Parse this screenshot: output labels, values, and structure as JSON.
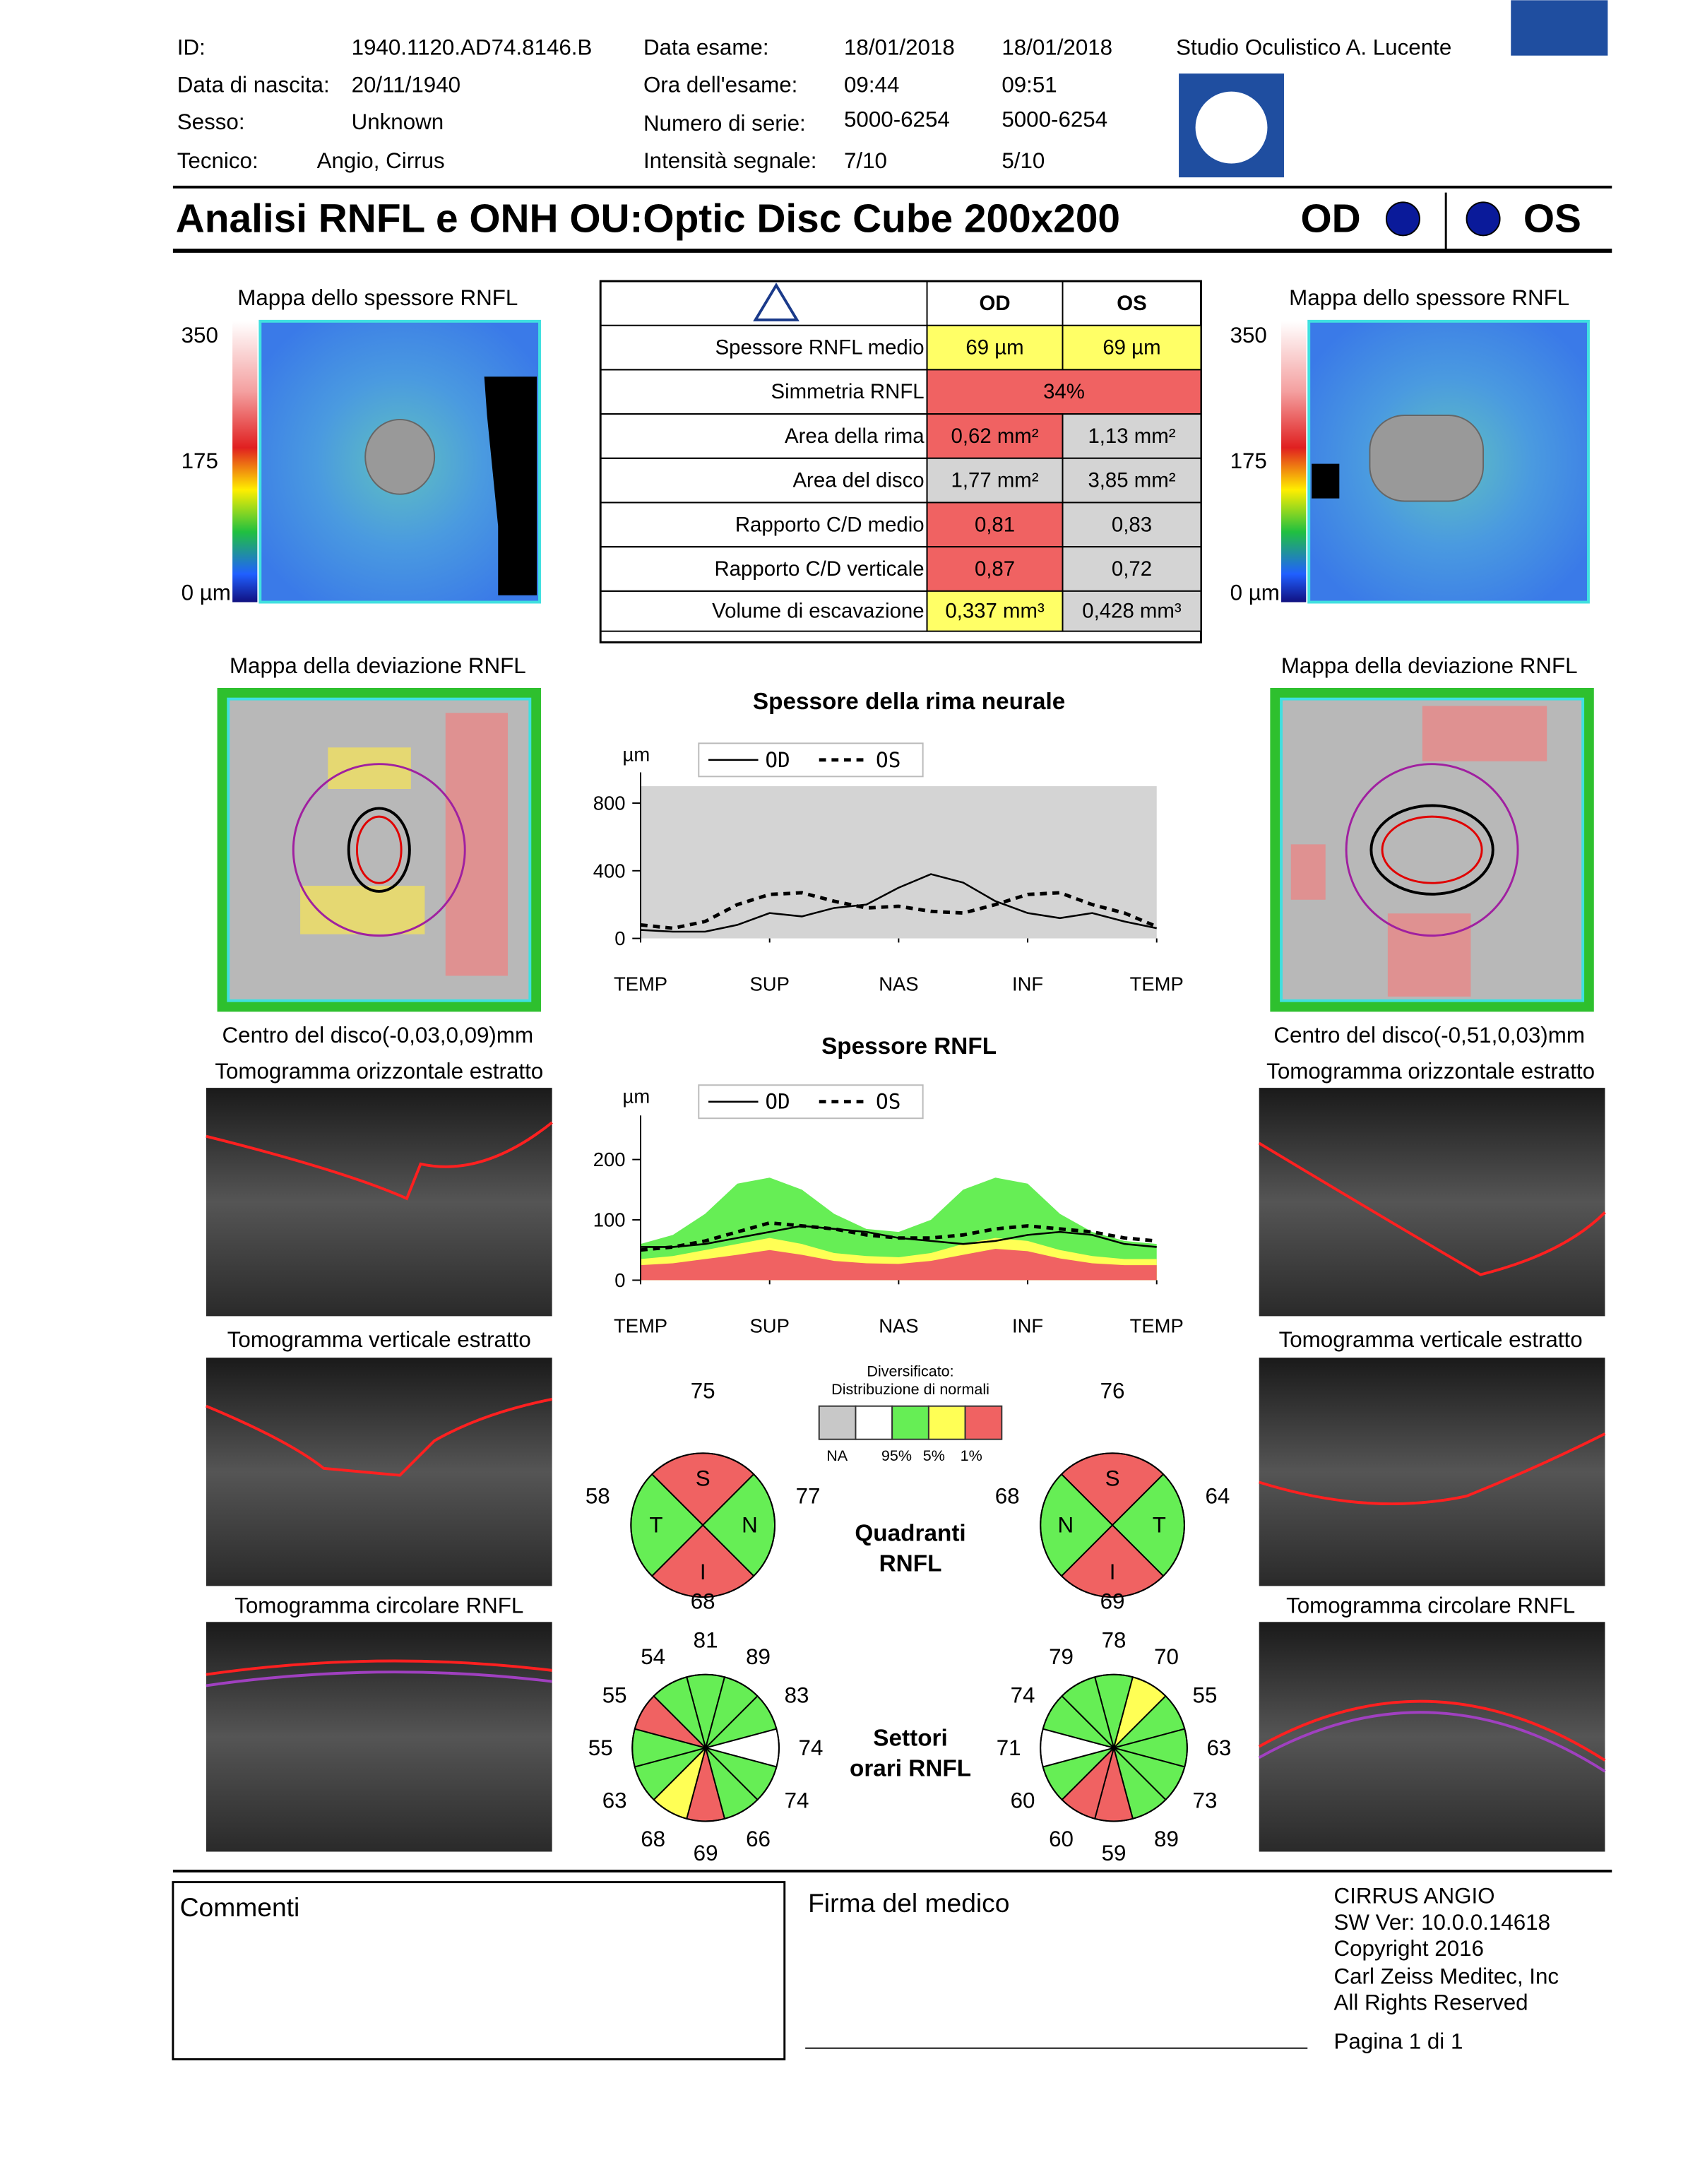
{
  "header": {
    "id_label": "ID:",
    "id": "1940.1120.AD74.8146.B",
    "birth_label": "Data di nascita:",
    "birth": "20/11/1940",
    "sex_label": "Sesso:",
    "sex": "Unknown",
    "tech_label": "Tecnico:",
    "tech": "Angio, Cirrus",
    "exam_date_label": "Data esame:",
    "exam_date_od": "18/01/2018",
    "exam_date_os": "18/01/2018",
    "exam_time_label": "Ora dell'esame:",
    "exam_time_od": "09:44",
    "exam_time_os": "09:51",
    "serial_label": "Numero di serie:",
    "serial_od": "5000-6254",
    "serial_os": "5000-6254",
    "signal_label": "Intensità segnale:",
    "signal_od": "7/10",
    "signal_os": "5/10",
    "clinic": "Studio Oculistico A. Lucente",
    "title": "Analisi RNFL e ONH OU:Optic Disc Cube 200x200",
    "od": "OD",
    "os": "OS"
  },
  "thickness_maps": {
    "title": "Mappa dello spessore RNFL",
    "scale_top": "350",
    "scale_mid": "175",
    "scale_bottom": "0 µm"
  },
  "table": {
    "head_od": "OD",
    "head_os": "OS",
    "rows": [
      {
        "label": "Spessore RNFL medio",
        "od": "69 µm",
        "os": "69 µm",
        "od_color": "#ffff66",
        "os_color": "#ffff66"
      },
      {
        "label": "Simmetria RNFL",
        "both": "34%",
        "color": "#f06262"
      },
      {
        "label": "Area della rima",
        "od": "0,62 mm²",
        "os": "1,13 mm²",
        "od_color": "#f06262",
        "os_color": "#d4d4d4"
      },
      {
        "label": "Area del disco",
        "od": "1,77 mm²",
        "os": "3,85 mm²",
        "od_color": "#d4d4d4",
        "os_color": "#d4d4d4"
      },
      {
        "label": "Rapporto C/D medio",
        "od": "0,81",
        "os": "0,83",
        "od_color": "#f06262",
        "os_color": "#d4d4d4"
      },
      {
        "label": "Rapporto C/D verticale",
        "od": "0,87",
        "os": "0,72",
        "od_color": "#f06262",
        "os_color": "#d4d4d4"
      },
      {
        "label": "Volume di escavazione",
        "od": "0,337 mm³",
        "os": "0,428 mm³",
        "od_color": "#ffff66",
        "os_color": "#d4d4d4"
      }
    ]
  },
  "deviation_maps": {
    "title": "Mappa della deviazione RNFL",
    "center_od": "Centro del disco(-0,03,0,09)mm",
    "center_os": "Centro del disco(-0,51,0,03)mm"
  },
  "rim_chart": {
    "type": "line",
    "title": "Spessore della rima neurale",
    "y_unit": "µm",
    "background": "#d4d4d4",
    "ylim": [
      0,
      900
    ],
    "yticks": [
      0,
      400,
      800
    ],
    "xlim": [
      0,
      16
    ],
    "xticks": [
      {
        "value": 0,
        "label": "TEMP"
      },
      {
        "value": 4,
        "label": "SUP"
      },
      {
        "value": 8,
        "label": "NAS"
      },
      {
        "value": 12,
        "label": "INF"
      },
      {
        "value": 16,
        "label": "TEMP"
      }
    ],
    "x": [
      0,
      1,
      2,
      3,
      4,
      5,
      6,
      7,
      8,
      9,
      10,
      11,
      12,
      13,
      14,
      15,
      16
    ],
    "series": [
      {
        "name": "OD",
        "color": "#000000",
        "dashed": false,
        "values": [
          50,
          40,
          40,
          80,
          150,
          130,
          180,
          200,
          300,
          380,
          330,
          220,
          150,
          120,
          150,
          100,
          60
        ]
      },
      {
        "name": "OS",
        "color": "#000000",
        "dashed": true,
        "values": [
          80,
          60,
          100,
          200,
          260,
          270,
          220,
          180,
          190,
          160,
          150,
          200,
          260,
          270,
          200,
          150,
          70
        ]
      }
    ]
  },
  "rnfl_chart": {
    "type": "line",
    "title": "Spessore RNFL",
    "y_unit": "µm",
    "ylim": [
      0,
      250
    ],
    "yticks": [
      0,
      100,
      200
    ],
    "xlim": [
      0,
      16
    ],
    "xticks": [
      {
        "value": 0,
        "label": "TEMP"
      },
      {
        "value": 4,
        "label": "SUP"
      },
      {
        "value": 8,
        "label": "NAS"
      },
      {
        "value": 12,
        "label": "INF"
      },
      {
        "value": 16,
        "label": "TEMP"
      }
    ],
    "x": [
      0,
      1,
      2,
      3,
      4,
      5,
      6,
      7,
      8,
      9,
      10,
      11,
      12,
      13,
      14,
      15,
      16
    ],
    "bands": [
      {
        "color": "#66ee55",
        "values": [
          60,
          75,
          110,
          160,
          170,
          150,
          110,
          85,
          80,
          100,
          150,
          170,
          160,
          110,
          80,
          65,
          60
        ]
      },
      {
        "color": "#ffff55",
        "values": [
          35,
          40,
          50,
          60,
          70,
          60,
          45,
          40,
          38,
          45,
          60,
          70,
          65,
          50,
          40,
          35,
          35
        ]
      },
      {
        "color": "#f06262",
        "values": [
          25,
          28,
          35,
          42,
          50,
          42,
          32,
          28,
          27,
          32,
          42,
          52,
          48,
          36,
          28,
          25,
          25
        ]
      }
    ],
    "series": [
      {
        "name": "OD",
        "color": "#000000",
        "dashed": false,
        "values": [
          55,
          55,
          60,
          70,
          80,
          90,
          85,
          80,
          70,
          65,
          60,
          65,
          75,
          80,
          75,
          60,
          55
        ]
      },
      {
        "name": "OS",
        "color": "#000000",
        "dashed": true,
        "values": [
          50,
          55,
          65,
          80,
          95,
          90,
          85,
          75,
          70,
          70,
          75,
          85,
          90,
          85,
          80,
          70,
          65
        ]
      }
    ]
  },
  "legend": {
    "title1": "Diversificato:",
    "title2": "Distribuzione di normali",
    "swatches": [
      "#c8c8c8",
      "#ffffff",
      "#66ee55",
      "#ffff55",
      "#f06262"
    ],
    "labels": [
      "NA",
      "95%",
      "5%",
      "1%"
    ]
  },
  "quadrants": {
    "title1": "Quadranti",
    "title2": "RNFL",
    "od": {
      "type": "pie",
      "labels": [
        "S",
        "N",
        "I",
        "T"
      ],
      "values": [
        75,
        77,
        68,
        58
      ],
      "colors": [
        "#f06262",
        "#66ee55",
        "#f06262",
        "#66ee55"
      ]
    },
    "os": {
      "type": "pie",
      "labels": [
        "S",
        "T",
        "I",
        "N"
      ],
      "values": [
        76,
        64,
        69,
        68
      ],
      "colors": [
        "#f06262",
        "#66ee55",
        "#f06262",
        "#66ee55"
      ]
    }
  },
  "clock_hours": {
    "title1": "Settori",
    "title2": "orari RNFL",
    "od": {
      "type": "pie",
      "values": [
        81,
        89,
        83,
        74,
        74,
        66,
        69,
        68,
        63,
        55,
        55,
        54
      ],
      "colors": [
        "#66ee55",
        "#66ee55",
        "#66ee55",
        "#ffffff",
        "#66ee55",
        "#66ee55",
        "#f06262",
        "#ffff55",
        "#66ee55",
        "#66ee55",
        "#f06262",
        "#66ee55"
      ]
    },
    "os": {
      "type": "pie",
      "values": [
        78,
        70,
        55,
        63,
        73,
        89,
        59,
        60,
        60,
        71,
        74,
        79
      ],
      "colors": [
        "#66ee55",
        "#ffff55",
        "#66ee55",
        "#66ee55",
        "#66ee55",
        "#66ee55",
        "#f06262",
        "#f06262",
        "#66ee55",
        "#ffffff",
        "#66ee55",
        "#66ee55"
      ]
    }
  },
  "tomograms": {
    "horizontal": "Tomogramma orizzontale estratto",
    "vertical": "Tomogramma verticale estratto",
    "circular": "Tomogramma circolare RNFL"
  },
  "footer": {
    "comments": "Commenti",
    "signature": "Firma del medico",
    "software": [
      "CIRRUS ANGIO",
      "SW Ver: 10.0.0.14618",
      "Copyright 2016",
      "Carl Zeiss Meditec, Inc",
      "All Rights Reserved"
    ],
    "page": "Pagina 1 di 1"
  }
}
